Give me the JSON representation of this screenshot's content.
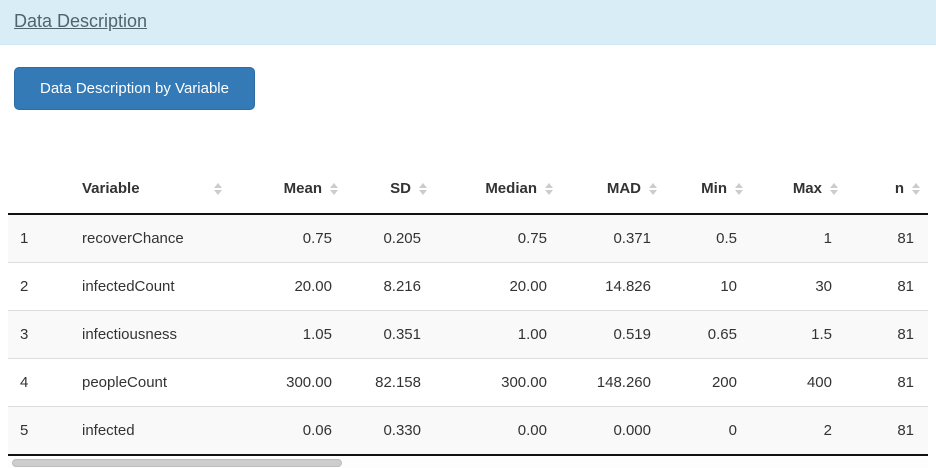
{
  "header": {
    "title": "Data Description"
  },
  "toolbar": {
    "button_label": "Data Description by Variable"
  },
  "colors": {
    "panel_heading_bg": "#d9edf7",
    "button_bg": "#337ab7",
    "button_border": "#2e6da4",
    "stripe_bg": "#f9f9f9",
    "sort_icon": "#cccccc",
    "text": "#333333",
    "title_text": "#50646e"
  },
  "table": {
    "columns": [
      {
        "key": "rownum",
        "label": "",
        "align": "left",
        "sortable": false
      },
      {
        "key": "variable",
        "label": "Variable",
        "align": "left",
        "sortable": true
      },
      {
        "key": "mean",
        "label": "Mean",
        "align": "right",
        "sortable": true
      },
      {
        "key": "sd",
        "label": "SD",
        "align": "right",
        "sortable": true
      },
      {
        "key": "median",
        "label": "Median",
        "align": "right",
        "sortable": true
      },
      {
        "key": "mad",
        "label": "MAD",
        "align": "right",
        "sortable": true
      },
      {
        "key": "min",
        "label": "Min",
        "align": "right",
        "sortable": true
      },
      {
        "key": "max",
        "label": "Max",
        "align": "right",
        "sortable": true
      },
      {
        "key": "n",
        "label": "n",
        "align": "right",
        "sortable": true
      }
    ],
    "rows": [
      {
        "cells": [
          "1",
          "recoverChance",
          "0.75",
          "0.205",
          "0.75",
          "0.371",
          "0.5",
          "1",
          "81"
        ]
      },
      {
        "cells": [
          "2",
          "infectedCount",
          "20.00",
          "8.216",
          "20.00",
          "14.826",
          "10",
          "30",
          "81"
        ]
      },
      {
        "cells": [
          "3",
          "infectiousness",
          "1.05",
          "0.351",
          "1.00",
          "0.519",
          "0.65",
          "1.5",
          "81"
        ]
      },
      {
        "cells": [
          "4",
          "peopleCount",
          "300.00",
          "82.158",
          "300.00",
          "148.260",
          "200",
          "400",
          "81"
        ]
      },
      {
        "cells": [
          "5",
          "infected",
          "0.06",
          "0.330",
          "0.00",
          "0.000",
          "0",
          "2",
          "81"
        ]
      }
    ]
  }
}
